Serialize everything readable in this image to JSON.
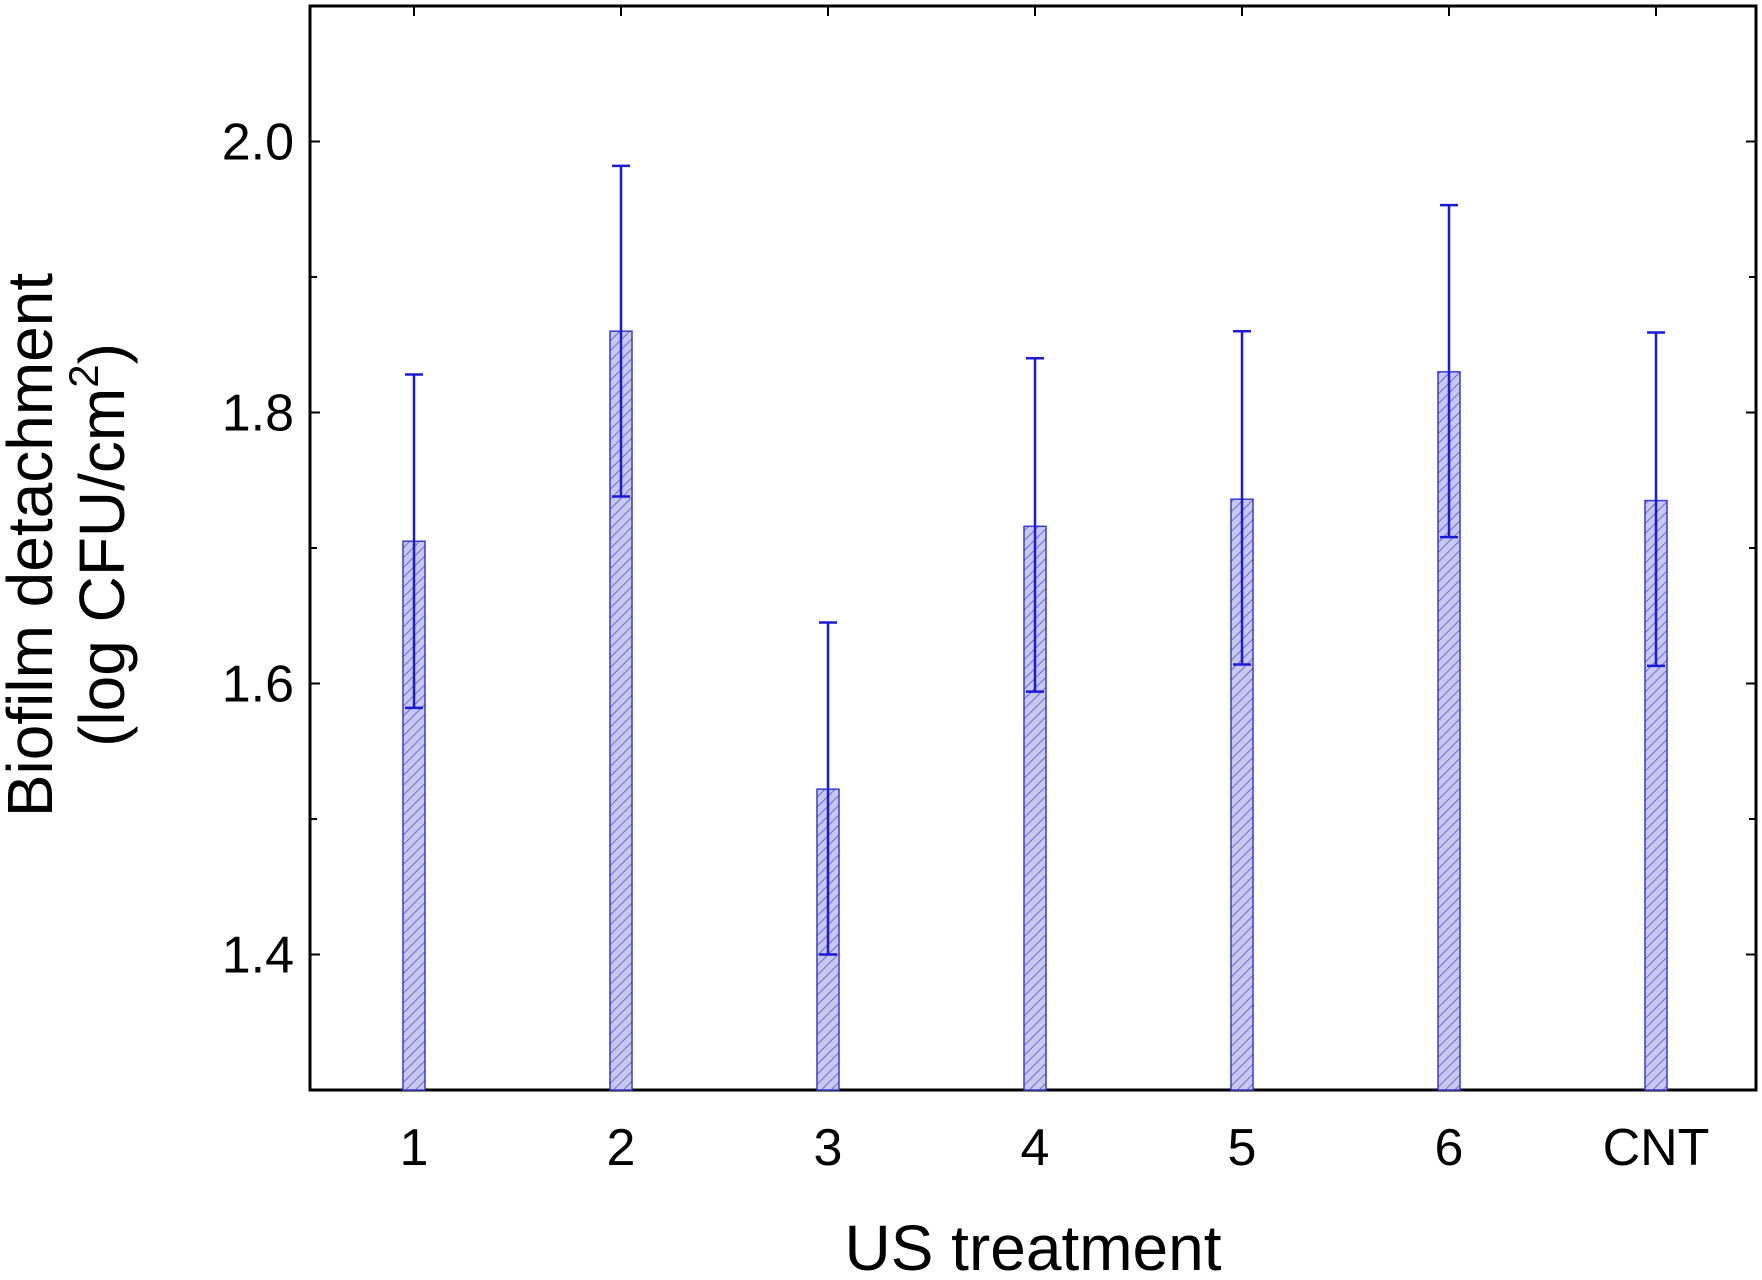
{
  "chart_data": {
    "type": "bar",
    "categories": [
      "1",
      "2",
      "3",
      "4",
      "5",
      "6",
      "CNT"
    ],
    "values": [
      1.705,
      1.86,
      1.522,
      1.716,
      1.736,
      1.83,
      1.735
    ],
    "error_low": [
      1.582,
      1.738,
      1.4,
      1.594,
      1.614,
      1.708,
      1.613
    ],
    "error_high": [
      1.828,
      1.982,
      1.645,
      1.84,
      1.86,
      1.953,
      1.859
    ],
    "xlabel": "US treatment",
    "ylabel_line1": "Biofilm detachment",
    "ylabel_line2": "(log CFU/cm",
    "ylabel_sup": "2",
    "ylabel_close": ")",
    "ylim": [
      1.3,
      2.1
    ],
    "yticks": [
      1.4,
      1.6,
      1.8,
      2.0
    ],
    "ytick_labels": [
      "1.4",
      "1.6",
      "1.8",
      "2.0"
    ],
    "grid": false,
    "colors": {
      "bar_fill": "#c8c8ee",
      "bar_hatch": "#6a6ad8",
      "bar_edge": "#3a3ad0",
      "error_bar": "#1a1ad8",
      "axis": "#000000"
    }
  }
}
